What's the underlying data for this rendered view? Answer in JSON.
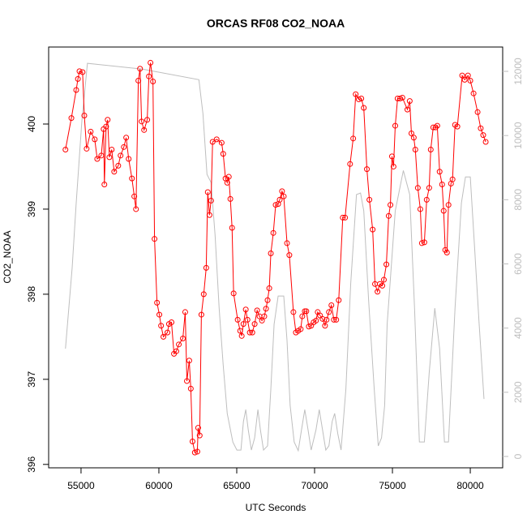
{
  "chart_data": {
    "type": "line",
    "title": "ORCAS RF08 CO2_NOAA",
    "xlabel": "UTC Seconds",
    "ylabel": "CO2_NOAA",
    "xlim": [
      52920,
      82080
    ],
    "xticks": [
      55000,
      60000,
      65000,
      70000,
      75000,
      80000
    ],
    "ylim": [
      395.96,
      400.905
    ],
    "yticks": [
      396,
      397,
      398,
      399,
      400
    ],
    "y2lim": [
      -354,
      12758
    ],
    "y2ticks": [
      0,
      2000,
      4000,
      6000,
      8000,
      10000,
      12000
    ],
    "y2color": "#bebebe",
    "series": [
      {
        "color": "#bebebe",
        "axis": "y2",
        "markers": false,
        "x": [
          54000,
          54430,
          54690,
          55050,
          55410,
          58940,
          62570,
          62830,
          63090,
          63350,
          63610,
          63870,
          64130,
          64390,
          64750,
          65010,
          65270,
          65430,
          65580,
          65740,
          65940,
          66150,
          66360,
          66520,
          66720,
          66980,
          67190,
          67400,
          67660,
          68020,
          68230,
          68430,
          68690,
          68950,
          69160,
          69370,
          69580,
          69780,
          70090,
          70300,
          70510,
          70720,
          70920,
          71130,
          71290,
          71490,
          71700,
          72010,
          72320,
          72690,
          72950,
          73160,
          73470,
          73830,
          74090,
          74300,
          74500,
          74660,
          75180,
          75700,
          76110,
          76420,
          76730,
          77050,
          77360,
          77720,
          78030,
          78340,
          78600,
          79020,
          79430,
          79690,
          80000,
          80260,
          80570,
          80880
        ],
        "values": [
          3360,
          5880,
          7900,
          10430,
          12250,
          12070,
          11740,
          10680,
          8790,
          8540,
          6890,
          4620,
          2850,
          1340,
          450,
          200,
          200,
          1090,
          1460,
          830,
          200,
          580,
          1460,
          830,
          200,
          330,
          2100,
          4120,
          5000,
          5000,
          3610,
          1590,
          450,
          180,
          830,
          1460,
          830,
          200,
          830,
          1460,
          830,
          200,
          330,
          1090,
          1340,
          710,
          200,
          2100,
          5380,
          8160,
          8210,
          7650,
          4870,
          2100,
          330,
          580,
          1590,
          4120,
          7650,
          8910,
          8160,
          4620,
          450,
          450,
          2600,
          4620,
          3360,
          450,
          450,
          4620,
          7900,
          8710,
          8710,
          6640,
          4120,
          1790
        ]
      },
      {
        "color": "#ff0000",
        "markers": true,
        "x": [
          54000,
          54380,
          54690,
          54800,
          54900,
          55100,
          55210,
          55360,
          55620,
          55880,
          56040,
          56300,
          56450,
          56500,
          56610,
          56710,
          56820,
          56970,
          57130,
          57390,
          57540,
          57750,
          57900,
          58060,
          58270,
          58420,
          58530,
          58680,
          58790,
          58890,
          59050,
          59250,
          59360,
          59460,
          59620,
          59720,
          59880,
          60030,
          60140,
          60290,
          60550,
          60650,
          60810,
          60970,
          61120,
          61280,
          61540,
          61690,
          61800,
          61950,
          62050,
          62160,
          62310,
          62470,
          62520,
          62620,
          62730,
          62880,
          63040,
          63140,
          63250,
          63350,
          63450,
          63710,
          64030,
          64130,
          64280,
          64390,
          64490,
          64590,
          64700,
          64800,
          65060,
          65220,
          65320,
          65430,
          65580,
          65690,
          65840,
          66000,
          66150,
          66310,
          66460,
          66620,
          66770,
          66880,
          66980,
          67090,
          67190,
          67350,
          67500,
          67660,
          67760,
          67910,
          68020,
          68230,
          68380,
          68640,
          68800,
          68950,
          69110,
          69210,
          69370,
          69470,
          69630,
          69780,
          69940,
          70090,
          70200,
          70350,
          70510,
          70670,
          70770,
          70920,
          71080,
          71240,
          71390,
          71550,
          71810,
          71960,
          72280,
          72480,
          72640,
          72840,
          73000,
          73160,
          73360,
          73520,
          73730,
          73880,
          74040,
          74190,
          74350,
          74450,
          74610,
          74760,
          74870,
          74970,
          75070,
          75180,
          75330,
          75490,
          75640,
          75960,
          76110,
          76220,
          76370,
          76470,
          76630,
          76790,
          76890,
          77050,
          77200,
          77360,
          77460,
          77620,
          77770,
          77880,
          78030,
          78190,
          78290,
          78390,
          78500,
          78600,
          78760,
          78860,
          79020,
          79170,
          79480,
          79640,
          79850,
          80000,
          80210,
          80470,
          80670,
          80830,
          80990
        ],
        "values": [
          399.7,
          400.07,
          400.4,
          400.53,
          400.62,
          400.61,
          400.1,
          399.71,
          399.91,
          399.82,
          399.59,
          399.63,
          399.94,
          399.29,
          399.97,
          400.05,
          399.61,
          399.7,
          399.44,
          399.51,
          399.63,
          399.73,
          399.84,
          399.59,
          399.36,
          399.15,
          399.0,
          400.51,
          400.65,
          400.03,
          399.93,
          400.05,
          400.56,
          400.72,
          400.5,
          398.65,
          397.9,
          397.76,
          397.63,
          397.5,
          397.55,
          397.65,
          397.67,
          397.3,
          397.33,
          397.41,
          397.48,
          397.79,
          396.98,
          397.22,
          396.89,
          396.27,
          396.14,
          396.15,
          396.43,
          396.34,
          397.76,
          398.0,
          398.31,
          399.2,
          398.93,
          399.1,
          399.79,
          399.82,
          399.78,
          399.65,
          399.36,
          399.31,
          399.38,
          399.12,
          398.78,
          398.01,
          397.7,
          397.57,
          397.51,
          397.65,
          397.82,
          397.7,
          397.55,
          397.55,
          397.65,
          397.81,
          397.74,
          397.69,
          397.74,
          397.83,
          397.93,
          398.07,
          398.48,
          398.72,
          399.05,
          399.06,
          399.11,
          399.21,
          399.15,
          398.6,
          398.46,
          397.79,
          397.55,
          397.57,
          397.59,
          397.74,
          397.8,
          397.8,
          397.62,
          397.63,
          397.67,
          397.69,
          397.79,
          397.75,
          397.71,
          397.63,
          397.7,
          397.79,
          397.87,
          397.7,
          397.7,
          397.93,
          398.9,
          398.9,
          399.53,
          399.83,
          400.35,
          400.29,
          400.3,
          400.19,
          399.47,
          399.11,
          398.76,
          398.12,
          398.03,
          398.12,
          398.1,
          398.17,
          398.35,
          398.92,
          399.05,
          399.62,
          399.5,
          399.98,
          400.3,
          400.3,
          400.31,
          400.17,
          400.27,
          399.89,
          399.84,
          399.7,
          399.25,
          399.0,
          398.6,
          398.61,
          399.11,
          399.25,
          399.7,
          399.96,
          399.96,
          399.98,
          399.44,
          399.29,
          398.98,
          398.52,
          398.49,
          399.05,
          399.3,
          399.35,
          399.99,
          399.97,
          400.57,
          400.52,
          400.57,
          400.51,
          400.36,
          400.14,
          399.95,
          399.87,
          399.79
        ]
      }
    ]
  }
}
